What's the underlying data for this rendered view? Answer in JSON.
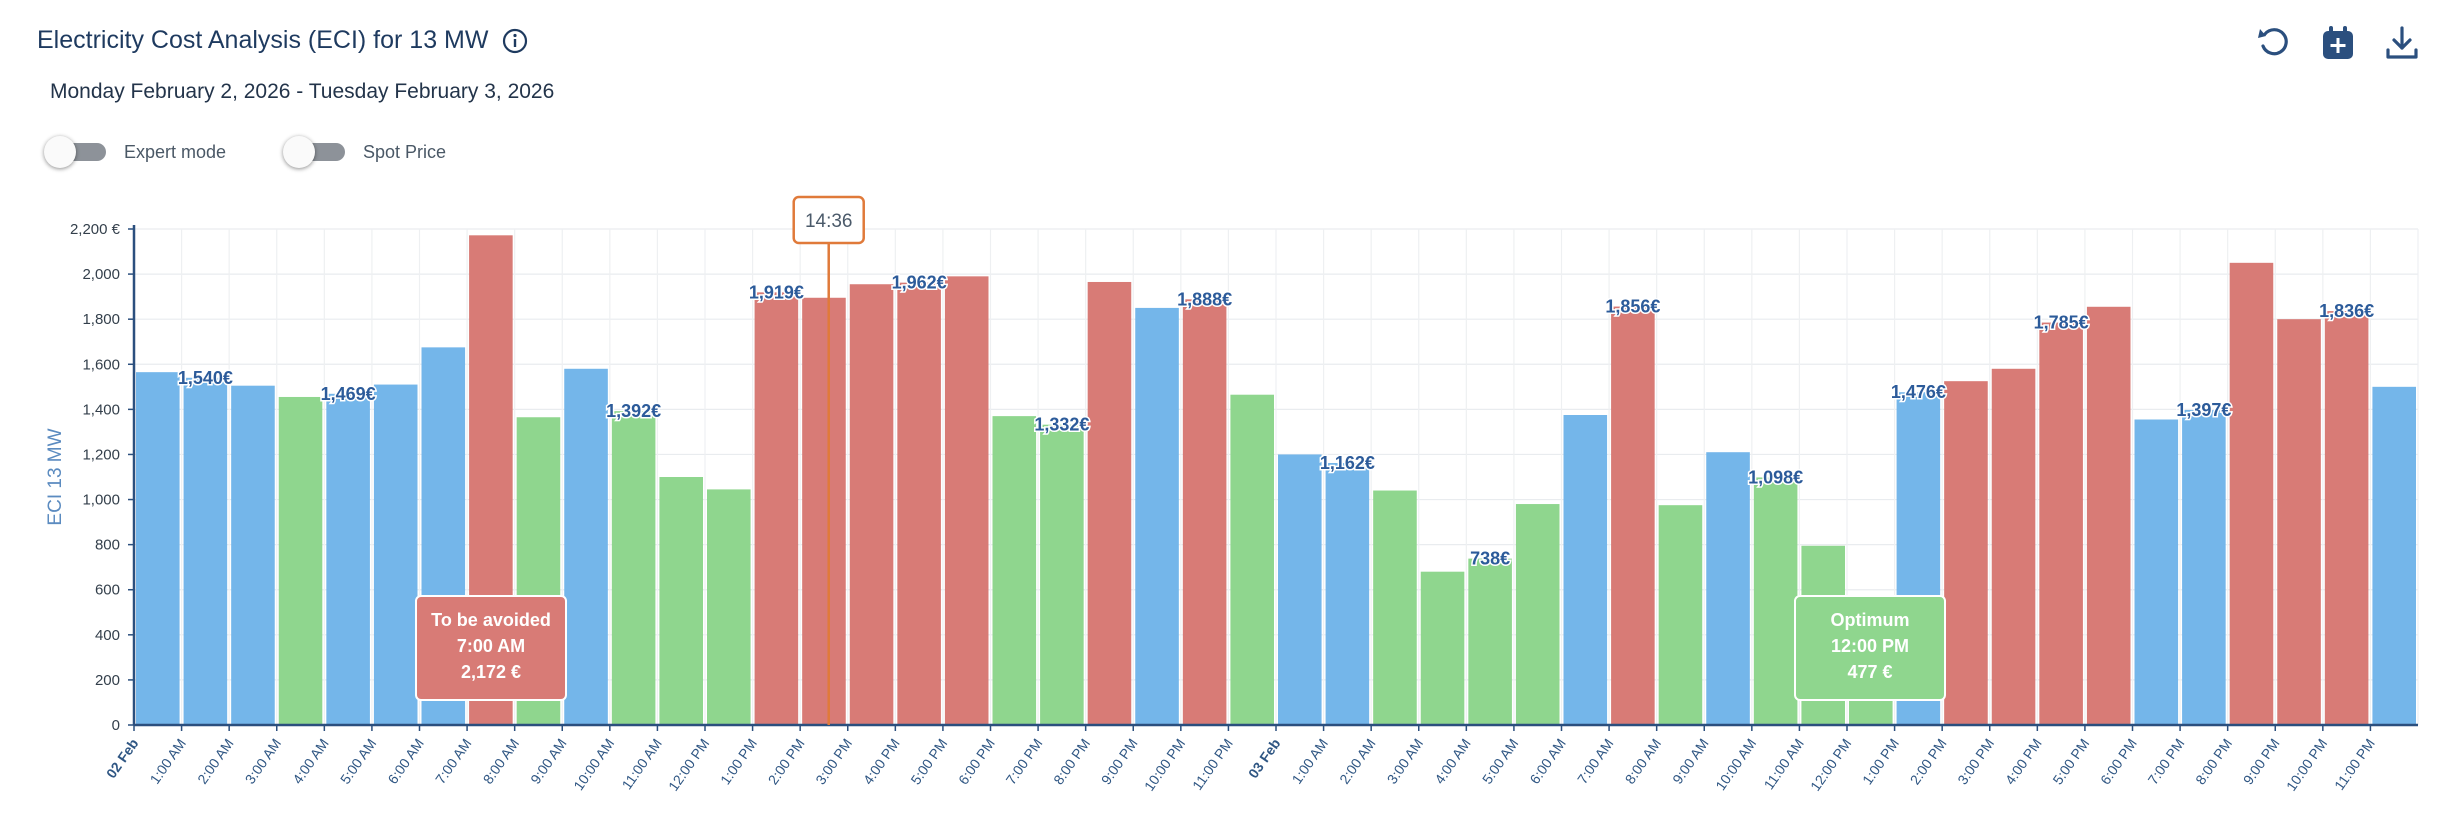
{
  "header": {
    "title": "Electricity Cost Analysis (ECI) for 13 MW",
    "date_range": "Monday February 2, 2026 - Tuesday February 3, 2026",
    "icons": [
      "info-icon",
      "reset-icon",
      "calendar-add-icon",
      "download-icon"
    ]
  },
  "toggles": [
    {
      "label": "Expert mode",
      "on": false
    },
    {
      "label": "Spot Price",
      "on": false
    }
  ],
  "cursor": {
    "time": "14:36"
  },
  "tooltips": {
    "avoid": {
      "title": "To be avoided",
      "time": "7:00 AM",
      "value": "2,172 €"
    },
    "optimum": {
      "title": "Optimum",
      "time": "12:00 PM",
      "value": "477 €"
    }
  },
  "colors": {
    "blue": "#74b6ea",
    "green": "#8fd68e",
    "red": "#d87b76",
    "axis": "#2b4f7e"
  },
  "chart_data": {
    "type": "bar",
    "ylabel": "ECI 13 MW",
    "ylim": [
      0,
      2200
    ],
    "yticks": [
      "0",
      "200",
      "400",
      "600",
      "800",
      "1,000",
      "1,200",
      "1,400",
      "1,600",
      "1,800",
      "2,000",
      "2,200 €"
    ],
    "categories": [
      "02 Feb",
      "1:00 AM",
      "2:00 AM",
      "3:00 AM",
      "4:00 AM",
      "5:00 AM",
      "6:00 AM",
      "7:00 AM",
      "8:00 AM",
      "9:00 AM",
      "10:00 AM",
      "11:00 AM",
      "12:00 PM",
      "1:00 PM",
      "2:00 PM",
      "3:00 PM",
      "4:00 PM",
      "5:00 PM",
      "6:00 PM",
      "7:00 PM",
      "8:00 PM",
      "9:00 PM",
      "10:00 PM",
      "11:00 PM",
      "03 Feb",
      "1:00 AM",
      "2:00 AM",
      "3:00 AM",
      "4:00 AM",
      "5:00 AM",
      "6:00 AM",
      "7:00 AM",
      "8:00 AM",
      "9:00 AM",
      "10:00 AM",
      "11:00 AM",
      "12:00 PM",
      "1:00 PM",
      "2:00 PM",
      "3:00 PM",
      "4:00 PM",
      "5:00 PM",
      "6:00 PM",
      "7:00 PM",
      "8:00 PM",
      "9:00 PM",
      "10:00 PM",
      "11:00 PM"
    ],
    "values": [
      1565,
      1540,
      1505,
      1455,
      1469,
      1510,
      1675,
      2172,
      1365,
      1580,
      1392,
      1100,
      1045,
      1919,
      1895,
      1955,
      1962,
      1990,
      1370,
      1332,
      1965,
      1850,
      1888,
      1465,
      1200,
      1162,
      1040,
      680,
      738,
      980,
      1375,
      1856,
      975,
      1210,
      1098,
      795,
      477,
      1476,
      1525,
      1580,
      1785,
      1855,
      1355,
      1397,
      2050,
      1800,
      1836,
      1500
    ],
    "status": [
      "b",
      "b",
      "b",
      "g",
      "b",
      "b",
      "b",
      "r",
      "g",
      "b",
      "g",
      "g",
      "g",
      "r",
      "r",
      "r",
      "r",
      "r",
      "g",
      "g",
      "r",
      "b",
      "r",
      "g",
      "b",
      "b",
      "g",
      "g",
      "g",
      "g",
      "b",
      "r",
      "g",
      "b",
      "g",
      "g",
      "g",
      "b",
      "r",
      "r",
      "r",
      "r",
      "b",
      "b",
      "r",
      "r",
      "r",
      "b"
    ],
    "data_labels": [
      {
        "index": 1,
        "text": "1,540€"
      },
      {
        "index": 4,
        "text": "1,469€"
      },
      {
        "index": 10,
        "text": "1,392€"
      },
      {
        "index": 13,
        "text": "1,919€"
      },
      {
        "index": 16,
        "text": "1,962€"
      },
      {
        "index": 19,
        "text": "1,332€"
      },
      {
        "index": 22,
        "text": "1,888€"
      },
      {
        "index": 25,
        "text": "1,162€"
      },
      {
        "index": 28,
        "text": "738€"
      },
      {
        "index": 31,
        "text": "1,856€"
      },
      {
        "index": 34,
        "text": "1,098€"
      },
      {
        "index": 37,
        "text": "1,476€"
      },
      {
        "index": 40,
        "text": "1,785€"
      },
      {
        "index": 43,
        "text": "1,397€"
      },
      {
        "index": 46,
        "text": "1,836€"
      }
    ],
    "grid": true
  }
}
